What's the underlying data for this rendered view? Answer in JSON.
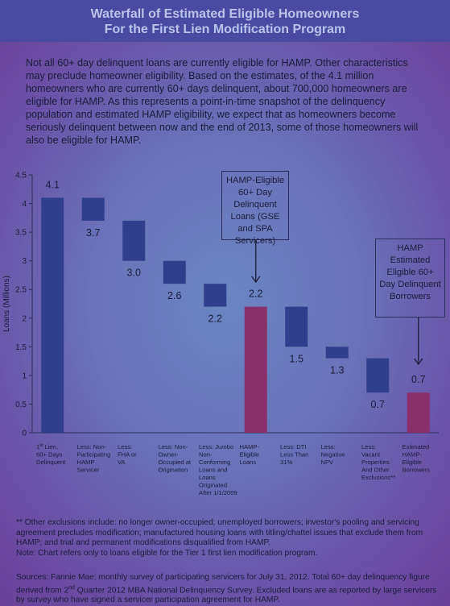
{
  "header": {
    "title_line1": "Waterfall of Estimated Eligible Homeowners",
    "title_line2": "For the First Lien Modification Program"
  },
  "intro": "Not all 60+ day delinquent loans are currently eligible for HAMP. Other characteristics may preclude homeowner eligibility. Based on the estimates, of the 4.1 million homeowners who are currently 60+ days delinquent, about 700,000 homeowners are eligible for HAMP. As this represents a point-in-time snapshot of the delinquency population and estimated HAMP eligibility, we expect that as homeowners become seriously delinquent between now and the end of 2013, some of those homeowners will also be eligible for HAMP.",
  "callouts": {
    "first": "HAMP-Eligible 60+ Day Delinquent Loans (GSE and SPA Servicers)",
    "second": "HAMP Estimated Eligible 60+ Day Delinquent Borrowers"
  },
  "chart_data": {
    "type": "bar",
    "subtype": "waterfall",
    "ylabel": "Loans (Millions)",
    "ylim": [
      0,
      4.5
    ],
    "yticks": [
      "0",
      "0.5",
      "1",
      "1.5",
      "2",
      "2.5",
      "3",
      "3.5",
      "4",
      "4.5"
    ],
    "grid": false,
    "categories": [
      [
        "1st Lien,",
        "60+ Days",
        "Delinquent"
      ],
      [
        "Less: Non-",
        "Participating",
        "HAMP",
        "Servicer"
      ],
      [
        "Less:",
        "FHA or",
        "VA"
      ],
      [
        "Less: Non-",
        "Owner-",
        "Occupied at",
        "Origination"
      ],
      [
        "Less: Jumbo",
        "Non-",
        "Conforming",
        "Loans and",
        "Loans",
        "Originated",
        "After 1/1/2009"
      ],
      [
        "HAMP-",
        "Eligible",
        "Loans"
      ],
      [
        "Less: DTI",
        "Less Than",
        "31%"
      ],
      [
        "Less:",
        "Negative",
        "NPV"
      ],
      [
        "Less:",
        "Vacant",
        "Properties",
        "And Other",
        "Exclusions**"
      ],
      [
        "Estimated",
        "HAMP-",
        "Eligible",
        "Borrowers"
      ]
    ],
    "bars": [
      {
        "low": 0,
        "high": 4.1,
        "label": "4.1",
        "kind": "total",
        "color": "#2f3f8e"
      },
      {
        "low": 3.7,
        "high": 4.1,
        "label": "3.7",
        "kind": "step",
        "color": "#2f3f8e"
      },
      {
        "low": 3.0,
        "high": 3.7,
        "label": "3.0",
        "kind": "step",
        "color": "#2f3f8e"
      },
      {
        "low": 2.6,
        "high": 3.0,
        "label": "2.6",
        "kind": "step",
        "color": "#2f3f8e"
      },
      {
        "low": 2.2,
        "high": 2.6,
        "label": "2.2",
        "kind": "step",
        "color": "#2f3f8e"
      },
      {
        "low": 0,
        "high": 2.2,
        "label": "2.2",
        "kind": "subtotal",
        "color": "#8a2f6a"
      },
      {
        "low": 1.5,
        "high": 2.2,
        "label": "1.5",
        "kind": "step",
        "color": "#2f3f8e"
      },
      {
        "low": 1.3,
        "high": 1.5,
        "label": "1.3",
        "kind": "step",
        "color": "#2f3f8e"
      },
      {
        "low": 0.7,
        "high": 1.3,
        "label": "0.7",
        "kind": "step",
        "color": "#2f3f8e"
      },
      {
        "low": 0,
        "high": 0.7,
        "label": "0.7",
        "kind": "final",
        "color": "#8a2f6a"
      }
    ]
  },
  "footnote": {
    "exclusions": "** Other exclusions include: no longer owner-occupied; unemployed borrowers; investor's pooling and servicing agreement precludes modification; manufactured housing loans with titling/chattel issues that exclude them from HAMP; and trial and permanent modifications disqualified from HAMP.",
    "note": "Note: Chart refers only to loans eligible for the Tier 1 first lien modification program."
  },
  "sources": {
    "part1": "Sources: Fannie Mae; monthly survey of participating servicers for July 31, 2012. Total 60+ day delinquency figure derived from 2",
    "sup": "nd",
    "part2": " Quarter 2012 MBA National Delinquency Survey. Excluded loans are as reported by large servicers by survey who have signed a servicer participation agreement for HAMP."
  }
}
